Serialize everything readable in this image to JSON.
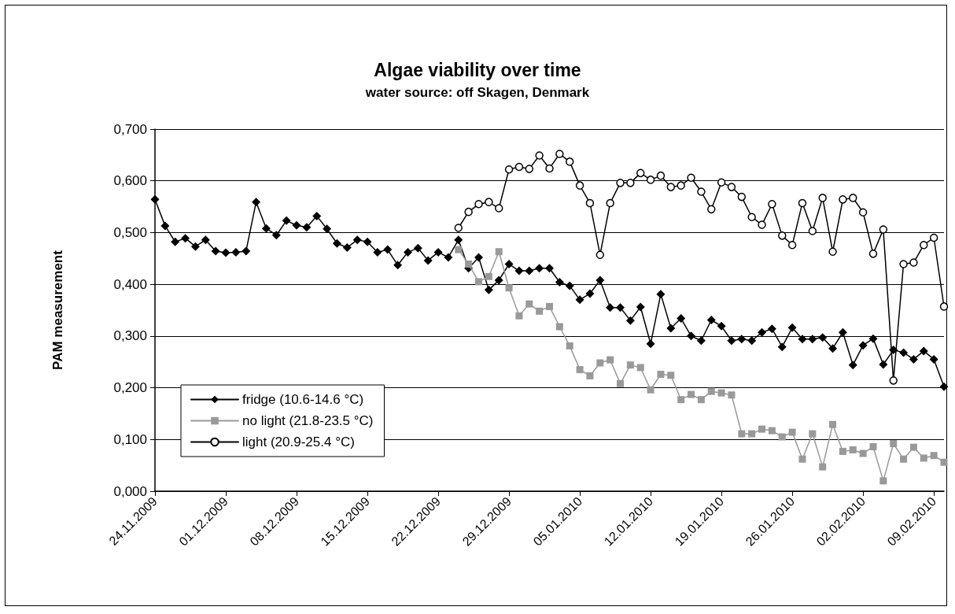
{
  "chart_data": {
    "type": "line",
    "title": "Algae viability over time",
    "subtitle": "water source: off Skagen, Denmark",
    "ylabel": "PAM measurement",
    "x": [
      "2009-11-24",
      "2009-11-25",
      "2009-11-26",
      "2009-11-27",
      "2009-11-28",
      "2009-11-29",
      "2009-11-30",
      "2009-12-01",
      "2009-12-02",
      "2009-12-03",
      "2009-12-04",
      "2009-12-05",
      "2009-12-06",
      "2009-12-07",
      "2009-12-08",
      "2009-12-09",
      "2009-12-10",
      "2009-12-11",
      "2009-12-12",
      "2009-12-13",
      "2009-12-14",
      "2009-12-15",
      "2009-12-16",
      "2009-12-17",
      "2009-12-18",
      "2009-12-19",
      "2009-12-20",
      "2009-12-21",
      "2009-12-22",
      "2009-12-23",
      "2009-12-24",
      "2009-12-25",
      "2009-12-26",
      "2009-12-27",
      "2009-12-28",
      "2009-12-29",
      "2009-12-30",
      "2009-12-31",
      "2010-01-01",
      "2010-01-02",
      "2010-01-03",
      "2010-01-04",
      "2010-01-05",
      "2010-01-06",
      "2010-01-07",
      "2010-01-08",
      "2010-01-09",
      "2010-01-10",
      "2010-01-11",
      "2010-01-12",
      "2010-01-13",
      "2010-01-14",
      "2010-01-15",
      "2010-01-16",
      "2010-01-17",
      "2010-01-18",
      "2010-01-19",
      "2010-01-20",
      "2010-01-21",
      "2010-01-22",
      "2010-01-23",
      "2010-01-24",
      "2010-01-25",
      "2010-01-26",
      "2010-01-27",
      "2010-01-28",
      "2010-01-29",
      "2010-01-30",
      "2010-01-31",
      "2010-02-01",
      "2010-02-02",
      "2010-02-03",
      "2010-02-04",
      "2010-02-05",
      "2010-02-06",
      "2010-02-07",
      "2010-02-08",
      "2010-02-09",
      "2010-02-10"
    ],
    "series": [
      {
        "name": "fridge (10.6-14.6 °C)",
        "color": "#000000",
        "marker": "diamond",
        "values": [
          0.564,
          0.513,
          0.482,
          0.489,
          0.473,
          0.486,
          0.464,
          0.461,
          0.462,
          0.464,
          0.559,
          0.508,
          0.495,
          0.523,
          0.514,
          0.51,
          0.532,
          0.507,
          0.479,
          0.471,
          0.486,
          0.482,
          0.462,
          0.467,
          0.437,
          0.462,
          0.47,
          0.446,
          0.462,
          0.452,
          0.486,
          0.431,
          0.452,
          0.389,
          0.408,
          0.439,
          0.426,
          0.426,
          0.431,
          0.431,
          0.404,
          0.397,
          0.37,
          0.382,
          0.408,
          0.355,
          0.355,
          0.33,
          0.356,
          0.285,
          0.381,
          0.315,
          0.334,
          0.3,
          0.291,
          0.331,
          0.319,
          0.291,
          0.294,
          0.291,
          0.307,
          0.314,
          0.279,
          0.316,
          0.294,
          0.294,
          0.297,
          0.276,
          0.307,
          0.244,
          0.282,
          0.295,
          0.245,
          0.273,
          0.268,
          0.255,
          0.271,
          0.255,
          0.202
        ]
      },
      {
        "name": "no light (21.8-23.5 °C)",
        "color": "#999999",
        "marker": "square",
        "values": [
          null,
          null,
          null,
          null,
          null,
          null,
          null,
          null,
          null,
          null,
          null,
          null,
          null,
          null,
          null,
          null,
          null,
          null,
          null,
          null,
          null,
          null,
          null,
          null,
          null,
          null,
          null,
          null,
          null,
          null,
          0.467,
          0.439,
          0.405,
          0.415,
          0.463,
          0.393,
          0.339,
          0.362,
          0.348,
          0.357,
          0.318,
          0.281,
          0.235,
          0.223,
          0.248,
          0.254,
          0.208,
          0.244,
          0.239,
          0.196,
          0.226,
          0.224,
          0.177,
          0.187,
          0.177,
          0.193,
          0.19,
          0.186,
          0.111,
          0.111,
          0.12,
          0.117,
          0.105,
          0.114,
          0.062,
          0.111,
          0.047,
          0.129,
          0.077,
          0.08,
          0.073,
          0.086,
          0.02,
          0.092,
          0.062,
          0.085,
          0.064,
          0.069,
          0.056
        ]
      },
      {
        "name": "light (20.9-25.4 °C)",
        "color": "#000000",
        "marker": "circle",
        "values": [
          null,
          null,
          null,
          null,
          null,
          null,
          null,
          null,
          null,
          null,
          null,
          null,
          null,
          null,
          null,
          null,
          null,
          null,
          null,
          null,
          null,
          null,
          null,
          null,
          null,
          null,
          null,
          null,
          null,
          null,
          0.509,
          0.54,
          0.555,
          0.559,
          0.547,
          0.622,
          0.627,
          0.623,
          0.649,
          0.624,
          0.652,
          0.637,
          0.591,
          0.557,
          0.457,
          0.557,
          0.596,
          0.596,
          0.615,
          0.602,
          0.61,
          0.588,
          0.591,
          0.606,
          0.579,
          0.545,
          0.597,
          0.588,
          0.569,
          0.53,
          0.515,
          0.555,
          0.494,
          0.476,
          0.557,
          0.503,
          0.567,
          0.463,
          0.564,
          0.567,
          0.539,
          0.459,
          0.506,
          0.214,
          0.439,
          0.442,
          0.476,
          0.49,
          0.357
        ]
      }
    ],
    "xlim": [
      "2009-11-24",
      "2010-02-10"
    ],
    "xticks": [
      {
        "value": "2009-11-24",
        "label": "24.11.2009"
      },
      {
        "value": "2009-12-01",
        "label": "01.12.2009"
      },
      {
        "value": "2009-12-08",
        "label": "08.12.2009"
      },
      {
        "value": "2009-12-15",
        "label": "15.12.2009"
      },
      {
        "value": "2009-12-22",
        "label": "22.12.2009"
      },
      {
        "value": "2009-12-29",
        "label": "29.12.2009"
      },
      {
        "value": "2010-01-05",
        "label": "05.01.2010"
      },
      {
        "value": "2010-01-12",
        "label": "12.01.2010"
      },
      {
        "value": "2010-01-19",
        "label": "19.01.2010"
      },
      {
        "value": "2010-01-26",
        "label": "26.01.2010"
      },
      {
        "value": "2010-02-02",
        "label": "02.02.2010"
      },
      {
        "value": "2010-02-09",
        "label": "09.02.2010"
      }
    ],
    "ylim": [
      0,
      0.7
    ],
    "yticks": [
      {
        "value": 0,
        "label": "0,000"
      },
      {
        "value": 0.1,
        "label": "0,100"
      },
      {
        "value": 0.2,
        "label": "0,200"
      },
      {
        "value": 0.3,
        "label": "0,300"
      },
      {
        "value": 0.4,
        "label": "0,400"
      },
      {
        "value": 0.5,
        "label": "0,500"
      },
      {
        "value": 0.6,
        "label": "0,600"
      },
      {
        "value": 0.7,
        "label": "0,700"
      }
    ],
    "grid": "y",
    "legend": "bottom left",
    "line_style": "solid"
  }
}
